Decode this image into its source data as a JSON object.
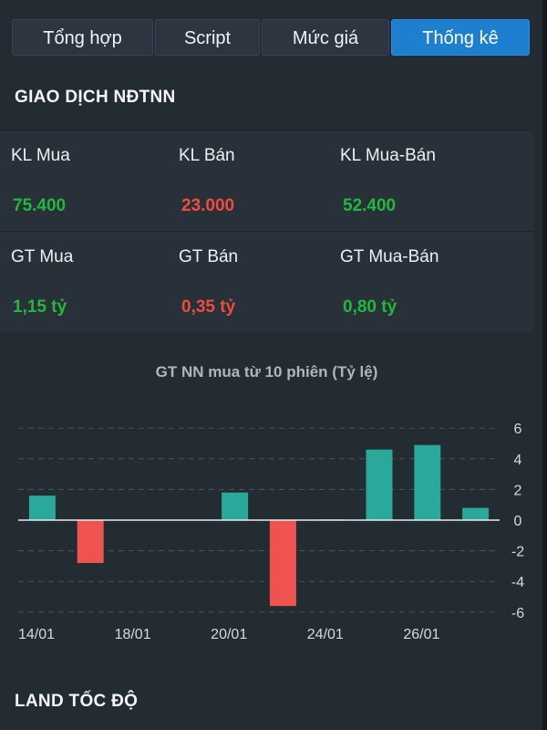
{
  "tabs": [
    {
      "label": "Tổng hợp",
      "active": false
    },
    {
      "label": "Script",
      "active": false
    },
    {
      "label": "Mức giá",
      "active": false
    },
    {
      "label": "Thống kê",
      "active": true
    }
  ],
  "section_foreign": {
    "title": "GIAO DỊCH NĐTNN",
    "row1": {
      "labels": [
        "KL Mua",
        "KL Bán",
        "KL Mua-Bán"
      ],
      "values": [
        "75.400",
        "23.000",
        "52.400"
      ]
    },
    "row2": {
      "labels": [
        "GT Mua",
        "GT Bán",
        "GT Mua-Bán"
      ],
      "values": [
        "1,15 tỷ",
        "0,35 tỷ",
        "0,80 tỷ"
      ]
    }
  },
  "colors": {
    "positive": "#2aa899",
    "negative": "#ef5350",
    "text_green": "#23b83a",
    "text_red": "#ef4b40",
    "tab_active": "#1e7fd0"
  },
  "chart_data": {
    "type": "bar",
    "title": "GT NN mua từ 10 phiên (Tỷ lệ)",
    "values": [
      1.6,
      -2.8,
      0,
      0,
      1.8,
      -5.6,
      0.05,
      4.6,
      4.9,
      0.8
    ],
    "x_tick_labels": [
      {
        "index": 0,
        "label": "14/01"
      },
      {
        "index": 2,
        "label": "18/01"
      },
      {
        "index": 4,
        "label": "20/01"
      },
      {
        "index": 6,
        "label": "24/01"
      },
      {
        "index": 8,
        "label": "26/01"
      }
    ],
    "y_ticks": [
      6,
      4,
      2,
      0,
      -2,
      -4,
      -6
    ],
    "ylim": [
      -6.5,
      6.5
    ],
    "grid": "horizontal dashed",
    "y_axis_position": "right"
  },
  "section_speed": {
    "title": "LAND TỐC ĐỘ"
  }
}
